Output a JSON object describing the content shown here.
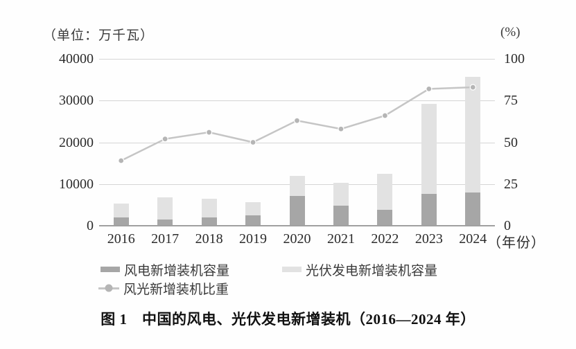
{
  "caption": "图 1　中国的风电、光伏发电新增装机（2016—2024 年）",
  "colors": {
    "wind_bar": "#a6a6a6",
    "solar_bar": "#e2e2e2",
    "share_line": "#c5c5c5",
    "share_marker": "#b5b5b5",
    "gridline": "#d5d5d5",
    "axis_line": "#a0a0a0"
  },
  "legend": {
    "wind_label": "风电新增装机容量",
    "solar_label": "光伏发电新增装机容量",
    "share_label": "风光新增装机比重"
  },
  "chart_data": {
    "type": "bar+line",
    "categories": [
      "2016",
      "2017",
      "2018",
      "2019",
      "2020",
      "2021",
      "2022",
      "2023",
      "2024"
    ],
    "bar_series": [
      {
        "name": "风电新增装机容量",
        "values": [
          1930,
          1503,
          2059,
          2574,
          7167,
          4757,
          3763,
          7590,
          7982
        ],
        "color": "#a6a6a6",
        "axis": "left",
        "stacking": "base"
      },
      {
        "name": "光伏发电新增装机容量",
        "values": [
          3454,
          5306,
          4426,
          3011,
          4820,
          5488,
          8741,
          21688,
          27757
        ],
        "color": "#e2e2e2",
        "axis": "left",
        "stacking": "on-top-of-wind"
      }
    ],
    "line_series": [
      {
        "name": "风光新增装机比重",
        "values": [
          39,
          52,
          56,
          50,
          63,
          58,
          66,
          82,
          83
        ],
        "color": "#c5c5c5",
        "marker_color": "#b5b5b5",
        "axis": "right"
      }
    ],
    "left_axis": {
      "label": "（单位：万千瓦）",
      "ticks": [
        "40000",
        "30000",
        "20000",
        "10000",
        "0"
      ],
      "range": [
        0,
        40000
      ]
    },
    "right_axis": {
      "label": "(%)",
      "ticks": [
        "100",
        "75",
        "50",
        "25",
        "0"
      ],
      "range": [
        0,
        100
      ]
    },
    "x_axis": {
      "label": "（年份）"
    },
    "grid": true,
    "legend_position": "bottom"
  }
}
